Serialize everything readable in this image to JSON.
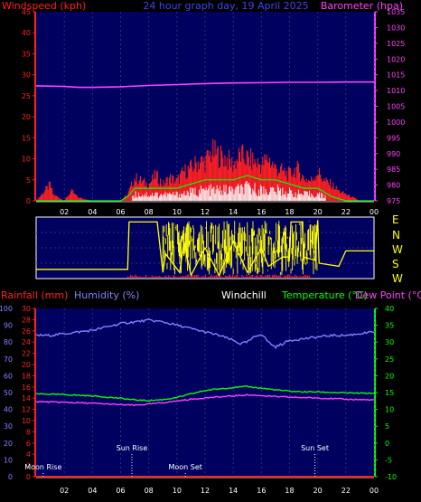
{
  "header": {
    "left_label": "Windspeed (kph)",
    "center_label": "24 hour graph day, 19 April 2025",
    "right_label": "Barometer (hpa)"
  },
  "panel2": {
    "compass": [
      "E",
      "N",
      "W",
      "S"
    ]
  },
  "panel3": {
    "labels": {
      "rainfall": "Rainfall (mm)",
      "humidity": "Humidity (%)",
      "windchill": "Windchill",
      "temperature": "Temperature (°C)",
      "dewpoint": "Dew Point (°C)"
    },
    "events": [
      {
        "label": "Moon Rise",
        "hour": 0.5
      },
      {
        "label": "Sun Rise",
        "hour": 6.8
      },
      {
        "label": "Moon Set",
        "hour": 10.6
      },
      {
        "label": "Sun Set",
        "hour": 19.8
      }
    ]
  },
  "colors": {
    "background": "#000000",
    "plot_bg": "#000060",
    "wind": "#ff2020",
    "gust_highlight": "#ffffff",
    "wind_avg": "#00ff00",
    "barometer": "#ff40ff",
    "direction": "#ffff00",
    "humidity": "#8080ff",
    "temperature": "#00ff00",
    "dewpoint": "#ff40ff",
    "rainfall": "#ff2020",
    "windspeed_label": "#ff2020",
    "center_label": "#4040ff",
    "barometer_label": "#ff40ff",
    "temperature_label": "#00ff00",
    "dewpoint_label": "#ff40ff",
    "rainfall_label": "#ff2020",
    "humidity_label": "#8080ff",
    "windchill_label": "#ffffff"
  },
  "chart_data": [
    {
      "type": "line",
      "title": "24 hour graph day, 19 April 2025",
      "xlabel": "",
      "ylabel": "Windspeed (kph)",
      "y2label": "Barometer (hpa)",
      "x_ticks": [
        "02",
        "04",
        "06",
        "08",
        "10",
        "12",
        "14",
        "16",
        "18",
        "20",
        "22",
        "00"
      ],
      "xlim_hours": [
        0,
        24
      ],
      "ylim": [
        0,
        45
      ],
      "y_ticks": [
        0,
        5,
        10,
        15,
        20,
        25,
        30,
        35,
        40,
        45
      ],
      "y2lim": [
        975,
        1035
      ],
      "y2_ticks": [
        975,
        980,
        985,
        990,
        995,
        1000,
        1005,
        1010,
        1015,
        1020,
        1025,
        1030,
        1035
      ],
      "series": [
        {
          "name": "Barometer (hpa)",
          "axis": "right",
          "x": [
            0,
            2,
            3,
            4,
            6,
            8,
            10,
            12,
            14,
            16,
            18,
            20,
            22,
            24
          ],
          "y": [
            1011.5,
            1011.3,
            1011.0,
            1011.0,
            1011.2,
            1011.6,
            1011.9,
            1012.2,
            1012.4,
            1012.5,
            1012.6,
            1012.6,
            1012.7,
            1012.7
          ]
        },
        {
          "name": "Wind gust",
          "axis": "left",
          "x": [
            0,
            1,
            1.2,
            2,
            2.5,
            3,
            4,
            5,
            6,
            6.5,
            7,
            7.5,
            8,
            8.5,
            9,
            9.5,
            10,
            10.5,
            11,
            11.5,
            12,
            12.5,
            13,
            13.5,
            14,
            14.5,
            15,
            15.5,
            16,
            16.5,
            17,
            17.5,
            18,
            18.5,
            19,
            19.5,
            20,
            20.5,
            21,
            21.5,
            22,
            23,
            24
          ],
          "y": [
            0,
            5,
            2,
            0,
            3,
            1,
            0,
            0,
            0,
            2,
            7,
            6,
            5,
            8,
            5,
            7,
            6,
            9,
            10,
            12,
            12,
            15,
            14,
            13,
            11,
            14,
            13,
            12,
            11,
            13,
            10,
            9,
            8,
            10,
            7,
            6,
            9,
            6,
            5,
            3,
            2,
            0,
            0
          ]
        },
        {
          "name": "Wind average",
          "axis": "left",
          "x": [
            0,
            6,
            6.5,
            7,
            8,
            9,
            10,
            11,
            12,
            13,
            14,
            15,
            16,
            17,
            18,
            19,
            20,
            21,
            22,
            24
          ],
          "y": [
            0,
            0,
            1,
            3,
            3,
            3,
            3,
            4,
            5,
            5,
            5,
            6,
            5,
            5,
            4,
            3,
            3,
            1,
            0,
            0
          ]
        }
      ]
    },
    {
      "type": "line",
      "title": "",
      "ylabel": "Wind direction",
      "y_categories": [
        "E",
        "N",
        "W",
        "S"
      ],
      "xlim_hours": [
        0,
        24
      ],
      "series": [
        {
          "name": "Wind direction",
          "x": [
            0,
            6.5,
            6.6,
            7.4,
            7.5,
            8.6,
            9.0,
            9.2,
            10.2,
            10.5,
            11.0,
            12.0,
            13.0,
            14.0,
            15.0,
            16.0,
            16.5,
            17.5,
            18.0,
            18.1,
            18.9,
            19.0,
            19.8,
            20.0,
            20.1,
            21.5,
            22.0,
            24.0
          ],
          "y": [
            0.15,
            0.15,
            0.92,
            0.92,
            0.92,
            0.92,
            0.1,
            0.4,
            0.1,
            0.6,
            0.05,
            0.5,
            0.05,
            0.6,
            0.1,
            0.5,
            0.2,
            0.35,
            0.35,
            0.92,
            0.92,
            0.35,
            0.3,
            0.95,
            0.25,
            0.2,
            0.45,
            0.45
          ]
        }
      ]
    },
    {
      "type": "line",
      "title": "",
      "x_ticks": [
        "02",
        "04",
        "06",
        "08",
        "10",
        "12",
        "14",
        "16",
        "18",
        "20",
        "22",
        "00"
      ],
      "xlim_hours": [
        0,
        24
      ],
      "axes": {
        "humidity": {
          "ylim": [
            0,
            100
          ],
          "ticks": [
            0,
            10,
            20,
            30,
            40,
            50,
            60,
            70,
            80,
            90,
            100
          ]
        },
        "rainfall": {
          "ylim": [
            0,
            30
          ],
          "ticks": [
            0,
            2,
            4,
            6,
            8,
            10,
            12,
            14,
            16,
            18,
            20,
            22,
            24,
            26,
            28,
            30
          ]
        },
        "temperature": {
          "ylim": [
            -10,
            40
          ],
          "ticks": [
            -10,
            -5,
            0,
            5,
            10,
            15,
            20,
            25,
            30,
            35,
            40
          ]
        }
      },
      "series": [
        {
          "name": "Humidity (%)",
          "axis": "humidity",
          "x": [
            0,
            1,
            2,
            3,
            4,
            5,
            6,
            7,
            8,
            9,
            10,
            11,
            12,
            13,
            14,
            14.5,
            15,
            15.5,
            16,
            16.5,
            17,
            17.5,
            18,
            19,
            20,
            21,
            22,
            23,
            24
          ],
          "y": [
            84,
            84,
            85,
            86,
            87,
            89,
            91,
            92,
            93,
            92,
            90,
            88,
            86,
            84,
            81,
            79,
            80,
            83,
            85,
            80,
            77,
            79,
            81,
            82,
            83,
            84,
            84,
            85,
            86
          ]
        },
        {
          "name": "Temperature (°C)",
          "axis": "temperature",
          "x": [
            0,
            2,
            4,
            6,
            7,
            8,
            9,
            10,
            11,
            12,
            13,
            14,
            15,
            16,
            17,
            18,
            19,
            20,
            21,
            22,
            23,
            24
          ],
          "y": [
            14.6,
            14.4,
            14.0,
            13.3,
            12.8,
            12.6,
            12.9,
            13.5,
            14.6,
            15.6,
            16.1,
            16.5,
            16.8,
            16.3,
            15.8,
            15.4,
            15.2,
            15.2,
            15.0,
            14.9,
            14.8,
            14.8
          ]
        },
        {
          "name": "Dew Point (°C)",
          "axis": "temperature",
          "x": [
            0,
            2,
            4,
            6,
            7,
            8,
            9,
            10,
            11,
            12,
            13,
            14,
            15,
            16,
            17,
            18,
            19,
            20,
            21,
            22,
            23,
            24
          ],
          "y": [
            12.3,
            12.1,
            11.8,
            11.4,
            11.2,
            11.6,
            12.0,
            12.5,
            13.0,
            13.4,
            13.7,
            14.0,
            14.3,
            14.1,
            13.8,
            13.6,
            13.5,
            13.4,
            13.2,
            13.0,
            12.9,
            12.8
          ]
        },
        {
          "name": "Rainfall (mm)",
          "axis": "rainfall",
          "x": [
            0,
            24
          ],
          "y": [
            0,
            0
          ]
        }
      ]
    }
  ]
}
